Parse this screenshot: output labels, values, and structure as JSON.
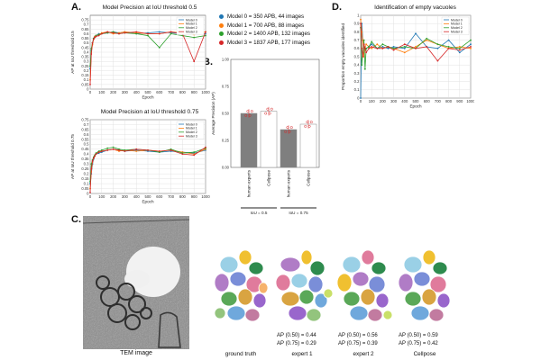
{
  "panels": {
    "a": "A.",
    "b": "B.",
    "c": "C.",
    "d": "D."
  },
  "series_colors": [
    "#1f77b4",
    "#ff7f0e",
    "#2ca02c",
    "#d62728"
  ],
  "models_legend": [
    {
      "label": "Model 0 =  350 APB, 44 images",
      "color": "#1f77b4"
    },
    {
      "label": "Model 1 = 700 APB, 88 images",
      "color": "#ff7f0e"
    },
    {
      "label": "Model 2 = 1400 APB, 132 images",
      "color": "#2ca02c"
    },
    {
      "label": "Model 3 = 1837 APB, 177 images",
      "color": "#d62728"
    }
  ],
  "chart_data": [
    {
      "id": "a1",
      "type": "line",
      "title": "Model Precision at IoU threshold 0.5",
      "xlabel": "Epoch",
      "ylabel": "AP at IoU threshold 0.5",
      "xlim": [
        0,
        1000
      ],
      "ylim": [
        0,
        0.8
      ],
      "xticks": [
        0,
        100,
        200,
        300,
        400,
        500,
        600,
        700,
        800,
        900,
        1000
      ],
      "yticks": [
        0,
        0.05,
        0.1,
        0.15,
        0.2,
        0.25,
        0.3,
        0.35,
        0.4,
        0.45,
        0.5,
        0.55,
        0.6,
        0.65,
        0.7,
        0.75
      ],
      "legend": [
        "Model 0",
        "Model 1",
        "Model 2",
        "Model 3"
      ],
      "x": [
        0,
        10,
        20,
        30,
        40,
        50,
        75,
        100,
        150,
        200,
        250,
        300,
        400,
        500,
        600,
        700,
        800,
        900,
        1000
      ],
      "series": [
        {
          "name": "Model 0",
          "values": [
            0.22,
            0.42,
            0.5,
            0.55,
            0.57,
            0.58,
            0.6,
            0.6,
            0.61,
            0.62,
            0.61,
            0.62,
            0.6,
            0.61,
            0.62,
            0.61,
            0.6,
            0.61,
            0.6
          ]
        },
        {
          "name": "Model 1",
          "values": [
            0.1,
            0.4,
            0.48,
            0.54,
            0.57,
            0.58,
            0.59,
            0.61,
            0.62,
            0.6,
            0.61,
            0.62,
            0.61,
            0.6,
            0.6,
            0.62,
            0.61,
            0.59,
            0.62
          ]
        },
        {
          "name": "Model 2",
          "values": [
            0.25,
            0.44,
            0.5,
            0.55,
            0.56,
            0.58,
            0.59,
            0.6,
            0.61,
            0.62,
            0.6,
            0.61,
            0.6,
            0.58,
            0.45,
            0.6,
            0.58,
            0.56,
            0.58
          ]
        },
        {
          "name": "Model 3",
          "values": [
            0.05,
            0.38,
            0.5,
            0.54,
            0.56,
            0.57,
            0.58,
            0.6,
            0.62,
            0.61,
            0.6,
            0.61,
            0.62,
            0.6,
            0.6,
            0.62,
            0.6,
            0.3,
            0.62
          ]
        }
      ]
    },
    {
      "id": "a2",
      "type": "line",
      "title": "Model Precision at IoU threshold 0.75",
      "xlabel": "Epoch",
      "ylabel": "AP at IoU threshold 0.75",
      "xlim": [
        0,
        1000
      ],
      "ylim": [
        0,
        0.75
      ],
      "xticks": [
        0,
        100,
        200,
        300,
        400,
        500,
        600,
        700,
        800,
        900,
        1000
      ],
      "yticks": [
        0,
        0.05,
        0.1,
        0.15,
        0.2,
        0.25,
        0.3,
        0.35,
        0.4,
        0.45,
        0.5,
        0.55,
        0.6,
        0.65,
        0.7,
        0.75
      ],
      "legend": [
        "Model 0",
        "Model 1",
        "Model 2",
        "Model 3"
      ],
      "x": [
        0,
        10,
        20,
        30,
        40,
        50,
        75,
        100,
        150,
        200,
        250,
        300,
        400,
        500,
        600,
        700,
        800,
        900,
        1000
      ],
      "series": [
        {
          "name": "Model 0",
          "values": [
            0.1,
            0.2,
            0.3,
            0.35,
            0.38,
            0.4,
            0.41,
            0.42,
            0.44,
            0.45,
            0.44,
            0.43,
            0.44,
            0.43,
            0.42,
            0.43,
            0.42,
            0.41,
            0.44
          ]
        },
        {
          "name": "Model 1",
          "values": [
            0.05,
            0.22,
            0.32,
            0.36,
            0.38,
            0.4,
            0.42,
            0.43,
            0.44,
            0.45,
            0.43,
            0.44,
            0.43,
            0.44,
            0.43,
            0.44,
            0.42,
            0.4,
            0.45
          ]
        },
        {
          "name": "Model 2",
          "values": [
            0.12,
            0.3,
            0.34,
            0.37,
            0.39,
            0.41,
            0.43,
            0.44,
            0.46,
            0.47,
            0.45,
            0.44,
            0.45,
            0.44,
            0.42,
            0.45,
            0.41,
            0.42,
            0.46
          ]
        },
        {
          "name": "Model 3",
          "values": [
            0.01,
            0.25,
            0.33,
            0.36,
            0.38,
            0.4,
            0.42,
            0.43,
            0.44,
            0.45,
            0.44,
            0.43,
            0.45,
            0.44,
            0.43,
            0.44,
            0.4,
            0.39,
            0.47
          ]
        }
      ]
    },
    {
      "id": "b",
      "type": "bar",
      "ylabel": "Average Precision (AP)",
      "ylim": [
        0,
        1
      ],
      "yticks": [
        0,
        0.25,
        0.5,
        0.75,
        1
      ],
      "yticklabels": [
        "0.00",
        "0.25",
        "0.50",
        "0.75",
        "1.00"
      ],
      "categories": [
        "human experts",
        "Cellpose",
        "human experts",
        "Cellpose"
      ],
      "values": [
        0.5,
        0.52,
        0.35,
        0.4
      ],
      "bar_colors": [
        "#7f7f7f",
        "#ffffff",
        "#7f7f7f",
        "#ffffff"
      ],
      "group_labels": [
        "IoU = 0.5",
        "IoU = 0.75"
      ]
    },
    {
      "id": "d",
      "type": "line",
      "title": "Identification of empty vacuoles",
      "xlabel": "Epoch",
      "ylabel": "Proportion empty vacuoles identified",
      "xlim": [
        0,
        1000
      ],
      "ylim": [
        0,
        1
      ],
      "xticks": [
        0,
        100,
        200,
        300,
        400,
        500,
        600,
        700,
        800,
        900,
        1000
      ],
      "yticks": [
        0,
        0.1,
        0.2,
        0.3,
        0.4,
        0.5,
        0.6,
        0.7,
        0.8,
        0.9,
        1
      ],
      "legend": [
        "Model 0",
        "Model 1",
        "Model 2",
        "Model 3"
      ],
      "x": [
        0,
        10,
        20,
        30,
        40,
        50,
        75,
        100,
        150,
        200,
        250,
        300,
        400,
        500,
        600,
        700,
        800,
        900,
        1000
      ],
      "series": [
        {
          "name": "Model 0",
          "values": [
            0.0,
            0.9,
            0.7,
            0.65,
            0.6,
            0.6,
            0.62,
            0.65,
            0.6,
            0.62,
            0.6,
            0.62,
            0.6,
            0.78,
            0.62,
            0.6,
            0.7,
            0.55,
            0.65
          ]
        },
        {
          "name": "Model 1",
          "values": [
            0.95,
            0.8,
            0.7,
            0.5,
            0.6,
            0.65,
            0.62,
            0.6,
            0.65,
            0.6,
            0.62,
            0.6,
            0.55,
            0.62,
            0.7,
            0.65,
            0.6,
            0.62,
            0.6
          ]
        },
        {
          "name": "Model 2",
          "values": [
            0.85,
            0.4,
            0.55,
            0.7,
            0.35,
            0.6,
            0.62,
            0.68,
            0.6,
            0.65,
            0.62,
            0.6,
            0.62,
            0.6,
            0.72,
            0.65,
            0.62,
            0.6,
            0.7
          ]
        },
        {
          "name": "Model 3",
          "values": [
            0.9,
            0.6,
            0.5,
            0.65,
            0.6,
            0.55,
            0.6,
            0.62,
            0.6,
            0.6,
            0.62,
            0.58,
            0.65,
            0.6,
            0.62,
            0.45,
            0.6,
            0.58,
            0.62
          ]
        }
      ]
    }
  ],
  "gallery": {
    "tem_caption": "TEM image",
    "items": [
      {
        "caption": "ground truth",
        "ap50": "",
        "ap75": ""
      },
      {
        "caption": "expert 1",
        "ap50": "AP (0.50) = 0.44",
        "ap75": "AP (0.75) = 0.29"
      },
      {
        "caption": "expert 2",
        "ap50": "AP (0.50) = 0.56",
        "ap75": "AP (0.75) = 0.39"
      },
      {
        "caption": "Cellpose",
        "ap50": "AP (0.50) = 0.59",
        "ap75": "AP (0.75) = 0.42"
      }
    ]
  }
}
